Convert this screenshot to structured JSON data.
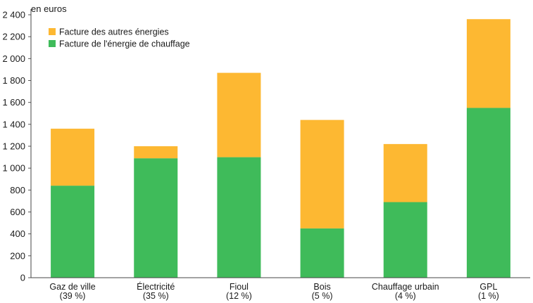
{
  "chart_data": {
    "type": "bar",
    "stacked": true,
    "unit_label": "en euros",
    "categories": [
      "Gaz de ville",
      "Électricité",
      "Fioul",
      "Bois",
      "Chauffage urbain",
      "GPL"
    ],
    "category_sublabels": [
      "(39 %)",
      "(35 %)",
      "(12 %)",
      "(5 %)",
      "(4 %)",
      "(1 %)"
    ],
    "series": [
      {
        "name": "Facture de l'énergie de chauffage",
        "color": "#3fbb5a",
        "values": [
          840,
          1090,
          1100,
          450,
          690,
          1550
        ]
      },
      {
        "name": "Facture des autres énergies",
        "color": "#fdb832",
        "values": [
          520,
          110,
          770,
          990,
          530,
          810
        ]
      }
    ],
    "ylim": [
      0,
      2400
    ],
    "yticks": [
      "0",
      "200",
      "400",
      "600",
      "800",
      "1 000",
      "1 200",
      "1 400",
      "1 600",
      "1 800",
      "2 000",
      "2 200",
      "2 400"
    ],
    "legend": {
      "placement": "top-left",
      "entries": [
        "Facture des autres énergies",
        "Facture de l'énergie de chauffage"
      ]
    },
    "grid": false
  }
}
